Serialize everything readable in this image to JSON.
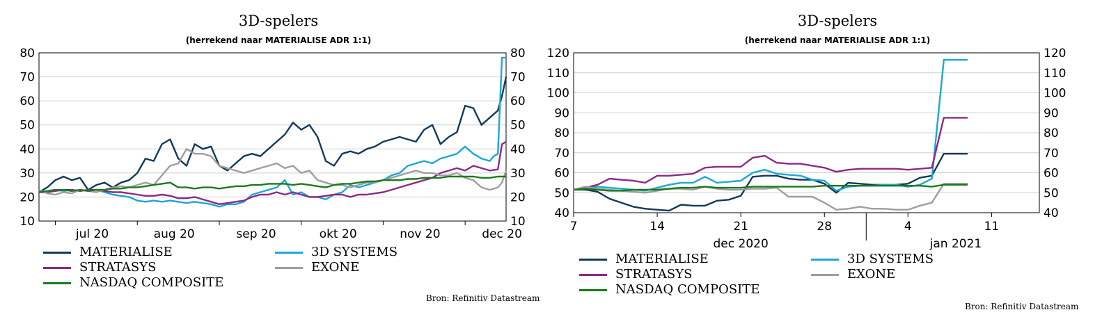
{
  "chart_data": [
    {
      "type": "line",
      "title": "3D-spelers",
      "subtitle": "(herrekend naar MATERIALISE ADR 1:1)",
      "source": "Bron: Refinitiv Datastream",
      "ylim": [
        10,
        80
      ],
      "yticks": [
        10,
        20,
        30,
        40,
        50,
        60,
        70,
        80
      ],
      "x_ticks": [
        "jul 20",
        "aug 20",
        "sep 20",
        "okt 20",
        "nov 20",
        "dec 20"
      ],
      "x_span_months": [
        6.8,
        12.5
      ],
      "x_tick_months": [
        7,
        8,
        9,
        10,
        11,
        12
      ],
      "grid": true,
      "legend_placement": "bottom",
      "series": [
        {
          "name": "MATERIALISE",
          "color": "#12395b",
          "x": [
            6.8,
            6.9,
            7.0,
            7.1,
            7.2,
            7.3,
            7.4,
            7.5,
            7.6,
            7.7,
            7.8,
            7.9,
            8.0,
            8.1,
            8.2,
            8.3,
            8.4,
            8.5,
            8.6,
            8.7,
            8.8,
            8.9,
            9.0,
            9.1,
            9.2,
            9.3,
            9.4,
            9.5,
            9.6,
            9.7,
            9.8,
            9.9,
            10.0,
            10.1,
            10.2,
            10.3,
            10.4,
            10.5,
            10.6,
            10.7,
            10.8,
            10.9,
            11.0,
            11.1,
            11.2,
            11.3,
            11.4,
            11.5,
            11.6,
            11.7,
            11.8,
            11.9,
            12.0,
            12.1,
            12.2,
            12.3,
            12.4,
            12.45,
            12.5
          ],
          "y": [
            22,
            24,
            27,
            28.5,
            27,
            28,
            23,
            25,
            26,
            24,
            26,
            27,
            30,
            36,
            35,
            42,
            44,
            36,
            33,
            42,
            40,
            41,
            33,
            31,
            34,
            37,
            38,
            37,
            40,
            43,
            46,
            51,
            48,
            50,
            45,
            35,
            33,
            38,
            39,
            38,
            40,
            41,
            43,
            44,
            45,
            44,
            43,
            48,
            50,
            42,
            45,
            47,
            58,
            57,
            50,
            53,
            56,
            62,
            70
          ]
        },
        {
          "name": "3D SYSTEMS",
          "color": "#1ba7d9",
          "x": [
            6.8,
            6.9,
            7.0,
            7.1,
            7.2,
            7.3,
            7.4,
            7.5,
            7.6,
            7.7,
            7.8,
            7.9,
            8.0,
            8.1,
            8.2,
            8.3,
            8.4,
            8.5,
            8.6,
            8.7,
            8.8,
            8.9,
            9.0,
            9.1,
            9.2,
            9.3,
            9.4,
            9.5,
            9.6,
            9.7,
            9.8,
            9.9,
            10.0,
            10.1,
            10.2,
            10.3,
            10.4,
            10.5,
            10.6,
            10.7,
            10.8,
            10.9,
            11.0,
            11.1,
            11.2,
            11.3,
            11.4,
            11.5,
            11.6,
            11.7,
            11.8,
            11.9,
            12.0,
            12.1,
            12.2,
            12.3,
            12.35,
            12.4,
            12.45,
            12.5
          ],
          "y": [
            22,
            22.5,
            23,
            22.5,
            23,
            22.5,
            23,
            23,
            22,
            21,
            20.5,
            20,
            18.5,
            18,
            18.5,
            18,
            18.5,
            18,
            17.5,
            18,
            17.5,
            17,
            16,
            17,
            17,
            18,
            21,
            22,
            23,
            24,
            27,
            21,
            22,
            20,
            20,
            19,
            21,
            22,
            25,
            24,
            25,
            26,
            27,
            29,
            30,
            33,
            34,
            35,
            34,
            36,
            37,
            38,
            41,
            38,
            36,
            35,
            37,
            38,
            78,
            78
          ]
        },
        {
          "name": "STRATASYS",
          "color": "#8b2a86",
          "x": [
            6.8,
            6.9,
            7.0,
            7.1,
            7.2,
            7.3,
            7.4,
            7.5,
            7.6,
            7.7,
            7.8,
            7.9,
            8.0,
            8.1,
            8.2,
            8.3,
            8.4,
            8.5,
            8.6,
            8.7,
            8.8,
            8.9,
            9.0,
            9.1,
            9.2,
            9.3,
            9.4,
            9.5,
            9.6,
            9.7,
            9.8,
            9.9,
            10.0,
            10.1,
            10.2,
            10.3,
            10.4,
            10.5,
            10.6,
            10.7,
            10.8,
            10.9,
            11.0,
            11.1,
            11.2,
            11.3,
            11.4,
            11.5,
            11.6,
            11.7,
            11.8,
            11.9,
            12.0,
            12.1,
            12.2,
            12.3,
            12.4,
            12.45,
            12.5
          ],
          "y": [
            22,
            22,
            22.5,
            23,
            23,
            22.5,
            23,
            23,
            22.5,
            22,
            22,
            21.5,
            21,
            20.5,
            20.5,
            21,
            20.5,
            19.5,
            19.5,
            20,
            19,
            18,
            17,
            17.5,
            18,
            18.5,
            20,
            21,
            21,
            22,
            21,
            22,
            21,
            20,
            20,
            20.5,
            21,
            21,
            20,
            21,
            21,
            21.5,
            22,
            23,
            24,
            25,
            26,
            27,
            28,
            30,
            31,
            32,
            31,
            33,
            32,
            31,
            31.5,
            42,
            43
          ]
        },
        {
          "name": "EXONE",
          "color": "#9e9e9e",
          "x": [
            6.8,
            6.9,
            7.0,
            7.1,
            7.2,
            7.3,
            7.4,
            7.5,
            7.6,
            7.7,
            7.8,
            7.9,
            8.0,
            8.1,
            8.2,
            8.3,
            8.4,
            8.5,
            8.6,
            8.7,
            8.8,
            8.9,
            9.0,
            9.1,
            9.2,
            9.3,
            9.4,
            9.5,
            9.6,
            9.7,
            9.8,
            9.9,
            10.0,
            10.1,
            10.2,
            10.3,
            10.4,
            10.5,
            10.6,
            10.7,
            10.8,
            10.9,
            11.0,
            11.1,
            11.2,
            11.3,
            11.4,
            11.5,
            11.6,
            11.7,
            11.8,
            11.9,
            12.0,
            12.1,
            12.2,
            12.3,
            12.4,
            12.45,
            12.5
          ],
          "y": [
            23,
            21.5,
            21,
            22,
            21.5,
            23,
            22.5,
            22,
            23,
            24,
            24.5,
            24,
            25,
            26,
            25,
            29,
            33,
            34,
            40,
            38,
            38,
            37,
            33,
            32,
            31,
            30,
            31,
            32,
            33,
            34,
            32,
            33,
            30,
            31,
            27,
            26,
            25,
            25,
            24,
            25,
            26,
            26,
            27,
            28,
            29,
            30,
            31,
            30,
            30,
            29,
            29,
            30,
            28,
            27,
            24,
            23,
            24,
            26,
            31
          ]
        },
        {
          "name": "NASDAQ COMPOSITE",
          "color": "#1b7a1b",
          "x": [
            6.8,
            6.9,
            7.0,
            7.1,
            7.2,
            7.3,
            7.4,
            7.5,
            7.6,
            7.7,
            7.8,
            7.9,
            8.0,
            8.1,
            8.2,
            8.3,
            8.4,
            8.5,
            8.6,
            8.7,
            8.8,
            8.9,
            9.0,
            9.1,
            9.2,
            9.3,
            9.4,
            9.5,
            9.6,
            9.7,
            9.8,
            9.9,
            10.0,
            10.1,
            10.2,
            10.3,
            10.4,
            10.5,
            10.6,
            10.7,
            10.8,
            10.9,
            11.0,
            11.1,
            11.2,
            11.3,
            11.4,
            11.5,
            11.6,
            11.7,
            11.8,
            11.9,
            12.0,
            12.1,
            12.2,
            12.3,
            12.4,
            12.45,
            12.5
          ],
          "y": [
            22,
            22.5,
            23,
            23,
            22.5,
            23,
            22.5,
            23,
            23,
            23.5,
            23.5,
            24,
            24,
            24.5,
            25,
            25.5,
            26,
            24,
            24,
            23.5,
            24,
            24,
            23.5,
            24,
            24.5,
            24.5,
            25,
            25,
            25.5,
            25.5,
            25.5,
            25,
            25.5,
            25,
            24.5,
            24,
            25,
            25.5,
            25.5,
            26,
            26.5,
            26.5,
            27,
            27,
            27,
            27.5,
            27.5,
            28,
            28,
            28,
            28.5,
            28.5,
            28.5,
            28.5,
            28,
            28,
            28.5,
            28.5,
            28.5
          ]
        }
      ]
    },
    {
      "type": "line",
      "title": "3D-spelers",
      "subtitle": "(herrekend naar MATERIALISE ADR 1:1)",
      "source": "Bron: Refinitiv Datastream",
      "ylim": [
        40,
        120
      ],
      "yticks": [
        40,
        50,
        60,
        70,
        80,
        90,
        100,
        110,
        120
      ],
      "xlim": [
        7,
        46
      ],
      "x_ticks": [
        "7",
        "14",
        "21",
        "28",
        "4",
        "11"
      ],
      "x_tick_positions": [
        7,
        14,
        21,
        28,
        35,
        42
      ],
      "x_group_labels": [
        {
          "label": "dec 2020",
          "center": 21
        },
        {
          "label": "jan 2021",
          "center": 39
        }
      ],
      "grid": true,
      "legend_placement": "bottom",
      "series": [
        {
          "name": "MATERIALISE",
          "color": "#12395b",
          "x": [
            7,
            8,
            9,
            10,
            11,
            12,
            13,
            14,
            15,
            16,
            17,
            18,
            19,
            20,
            21,
            22,
            23,
            24,
            25,
            26,
            27,
            28,
            29,
            30,
            31,
            32,
            33,
            34,
            35,
            36,
            37,
            38,
            39,
            40
          ],
          "y": [
            51.5,
            51.5,
            50.5,
            47,
            45,
            43,
            42,
            41.5,
            41,
            44,
            43.5,
            43.5,
            46,
            46.5,
            48.5,
            58,
            58.5,
            58.5,
            57,
            56.5,
            56.5,
            54.5,
            50,
            55,
            54.5,
            54,
            54,
            54,
            54.5,
            57.5,
            58.5,
            69.5,
            69.5,
            69.5
          ]
        },
        {
          "name": "3D SYSTEMS",
          "color": "#1ba7d9",
          "x": [
            7,
            8,
            9,
            10,
            11,
            12,
            13,
            14,
            15,
            16,
            17,
            18,
            19,
            20,
            21,
            22,
            23,
            24,
            25,
            26,
            27,
            28,
            29,
            30,
            31,
            32,
            33,
            34,
            35,
            36,
            37,
            38,
            39,
            40
          ],
          "y": [
            51.5,
            52.5,
            53,
            52.5,
            52,
            51.5,
            51,
            52.5,
            54,
            55,
            55,
            58,
            55,
            55.5,
            56,
            60,
            61.5,
            59.5,
            59,
            58.5,
            56.5,
            56,
            51,
            53,
            53.5,
            53.5,
            54,
            54,
            53,
            54,
            57,
            116.5,
            116.5,
            116.5
          ]
        },
        {
          "name": "STRATASYS",
          "color": "#8b2a86",
          "x": [
            7,
            8,
            9,
            10,
            11,
            12,
            13,
            14,
            15,
            16,
            17,
            18,
            19,
            20,
            21,
            22,
            23,
            24,
            25,
            26,
            27,
            28,
            29,
            30,
            31,
            32,
            33,
            34,
            35,
            36,
            37,
            38,
            39,
            40
          ],
          "y": [
            51.5,
            52.5,
            54,
            57,
            56.5,
            56,
            55,
            58.5,
            58.5,
            59,
            59.5,
            62.5,
            63,
            63,
            63,
            67.5,
            68.5,
            65,
            64.5,
            64.5,
            63.5,
            62.5,
            60.5,
            61.5,
            62,
            62,
            62,
            62,
            61.5,
            62,
            62.5,
            87.5,
            87.5,
            87.5
          ]
        },
        {
          "name": "EXONE",
          "color": "#9e9e9e",
          "x": [
            7,
            8,
            9,
            10,
            11,
            12,
            13,
            14,
            15,
            16,
            17,
            18,
            19,
            20,
            21,
            22,
            23,
            24,
            25,
            26,
            27,
            28,
            29,
            30,
            31,
            32,
            33,
            34,
            35,
            36,
            37,
            38,
            39,
            40
          ],
          "y": [
            51.5,
            53,
            52,
            51.5,
            51,
            50.5,
            50,
            51,
            52,
            52,
            51.5,
            53,
            52,
            51.5,
            51.5,
            52,
            52,
            52.5,
            48,
            48,
            48,
            45,
            41.5,
            42,
            43,
            42,
            42,
            41.5,
            41.5,
            43.5,
            45,
            54.5,
            54.5,
            54.5
          ]
        },
        {
          "name": "NASDAQ COMPOSITE",
          "color": "#1b7a1b",
          "x": [
            7,
            8,
            9,
            10,
            11,
            12,
            13,
            14,
            15,
            16,
            17,
            18,
            19,
            20,
            21,
            22,
            23,
            24,
            25,
            26,
            27,
            28,
            29,
            30,
            31,
            32,
            33,
            34,
            35,
            36,
            37,
            38,
            39,
            40
          ],
          "y": [
            51.5,
            52,
            51.5,
            51,
            51,
            51.5,
            51.5,
            51.5,
            52,
            52.5,
            52.5,
            53,
            52.5,
            52.5,
            52.5,
            53,
            53,
            53,
            53,
            53,
            53,
            53.5,
            53.5,
            53.5,
            53.5,
            53.5,
            53.5,
            53.5,
            53.5,
            53.5,
            53,
            54,
            54,
            54
          ]
        }
      ]
    }
  ]
}
